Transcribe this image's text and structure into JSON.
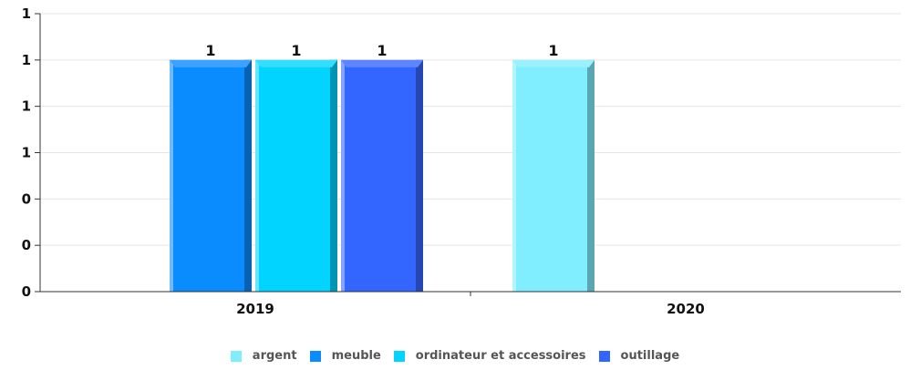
{
  "chart_data": {
    "type": "bar",
    "categories": [
      "2019",
      "2020"
    ],
    "y_tick_labels": [
      "0",
      "0",
      "0",
      "1",
      "1",
      "1",
      "1"
    ],
    "ylim": [
      0,
      1.2
    ],
    "grid": true,
    "legend_position": "bottom-center",
    "series": [
      {
        "name": "argent",
        "color": "#80eeff",
        "values": [
          null,
          1
        ],
        "labels": [
          "",
          "1"
        ]
      },
      {
        "name": "meuble",
        "color": "#0a8cff",
        "values": [
          1,
          null
        ],
        "labels": [
          "1",
          ""
        ]
      },
      {
        "name": "ordinateur et accessoires",
        "color": "#00d4ff",
        "values": [
          1,
          null
        ],
        "labels": [
          "1",
          ""
        ]
      },
      {
        "name": "outillage",
        "color": "#3366ff",
        "values": [
          1,
          null
        ],
        "labels": [
          "1",
          ""
        ]
      }
    ]
  }
}
